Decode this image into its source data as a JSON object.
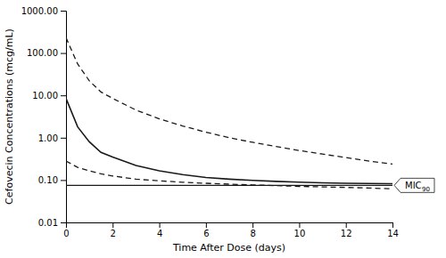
{
  "chart_data": {
    "type": "line",
    "xlabel": "Time After Dose (days)",
    "ylabel": "Cefovecin Concentrations (mcg/mL)",
    "log": "y",
    "grid": false,
    "xlim": [
      0,
      14
    ],
    "ylim": [
      0.01,
      1000
    ],
    "xticks": [
      0,
      2,
      4,
      6,
      8,
      10,
      12,
      14
    ],
    "yticks": [
      0.01,
      {
        "value": 0.1,
        "label": "0.10"
      },
      {
        "value": 1.0,
        "label": "1.00"
      },
      {
        "value": 10.0,
        "label": "10.00"
      },
      {
        "value": 100.0,
        "label": "100.00"
      },
      {
        "value": 1000.0,
        "label": "1000.00"
      }
    ],
    "x": [
      0,
      0.5,
      1,
      1.5,
      2,
      3,
      4,
      5,
      6,
      7,
      8,
      9,
      10,
      11,
      12,
      13,
      14
    ],
    "series": [
      {
        "color": "#1a1a1a",
        "line_style": "solid",
        "values": [
          8.5,
          1.8,
          0.8,
          0.45,
          0.35,
          0.22,
          0.165,
          0.135,
          0.115,
          0.105,
          0.098,
          0.093,
          0.089,
          0.086,
          0.084,
          0.083,
          0.082
        ]
      },
      {
        "color": "#1a1a1a",
        "line_style": "dashed",
        "values": [
          230,
          55,
          22,
          12,
          8.5,
          4.5,
          2.8,
          1.9,
          1.35,
          1.0,
          0.78,
          0.62,
          0.5,
          0.41,
          0.34,
          0.28,
          0.24
        ]
      },
      {
        "color": "#1a1a1a",
        "line_style": "dashed",
        "values": [
          0.28,
          0.2,
          0.165,
          0.14,
          0.125,
          0.105,
          0.096,
          0.089,
          0.084,
          0.08,
          0.077,
          0.074,
          0.071,
          0.069,
          0.067,
          0.065,
          0.062
        ]
      }
    ],
    "hlines": [
      {
        "value": 0.075,
        "color": "#1a1a1a",
        "label": "MIC",
        "label_subscript": "90"
      }
    ]
  }
}
